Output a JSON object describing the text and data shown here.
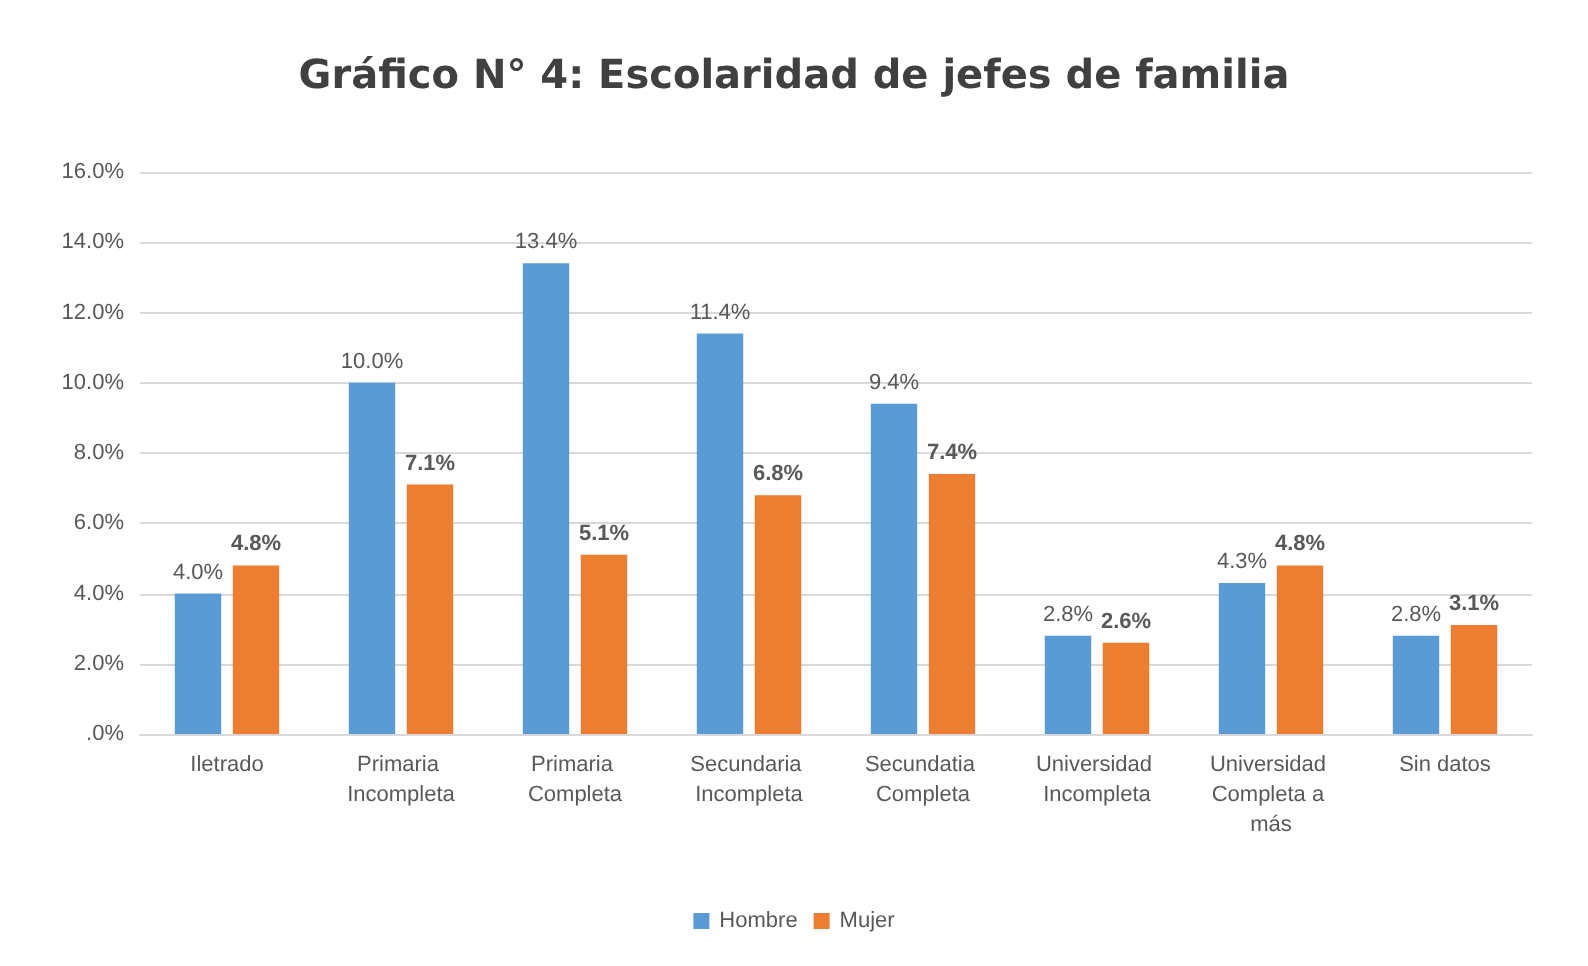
{
  "chart_data": {
    "type": "bar",
    "title": "Gráfico N° 4: Escolaridad de jefes de familia",
    "categories": [
      "Iletrado",
      "Primaria Incompleta",
      "Primaria Completa",
      "Secundaria Incompleta",
      "Secundatia Completa",
      "Universidad Incompleta",
      "Universidad Completa a más",
      "Sin datos"
    ],
    "series": [
      {
        "name": "Hombre",
        "color": "#5b9bd5",
        "values": [
          4.0,
          10.0,
          13.4,
          11.4,
          9.4,
          2.8,
          4.3,
          2.8
        ],
        "value_labels": [
          "4.0%",
          "10.0%",
          "13.4%",
          "11.4%",
          "9.4%",
          "2.8%",
          "4.3%",
          "2.8%"
        ]
      },
      {
        "name": "Mujer",
        "color": "#ed7d31",
        "values": [
          4.8,
          7.1,
          5.1,
          6.8,
          7.4,
          2.6,
          4.8,
          3.1
        ],
        "value_labels": [
          "4.8%",
          "7.1%",
          "5.1%",
          "6.8%",
          "7.4%",
          "2.6%",
          "4.8%",
          "3.1%"
        ]
      }
    ],
    "ylim": [
      0,
      16
    ],
    "yticks": [
      {
        "value": 0,
        "label": ".0%"
      },
      {
        "value": 2,
        "label": "2.0%"
      },
      {
        "value": 4,
        "label": "4.0%"
      },
      {
        "value": 6,
        "label": "6.0%"
      },
      {
        "value": 8,
        "label": "8.0%"
      },
      {
        "value": 10,
        "label": "10.0%"
      },
      {
        "value": 12,
        "label": "12.0%"
      },
      {
        "value": 14,
        "label": "14.0%"
      },
      {
        "value": 16,
        "label": "16.0%"
      }
    ],
    "grid": "y",
    "legend": "bottom"
  }
}
